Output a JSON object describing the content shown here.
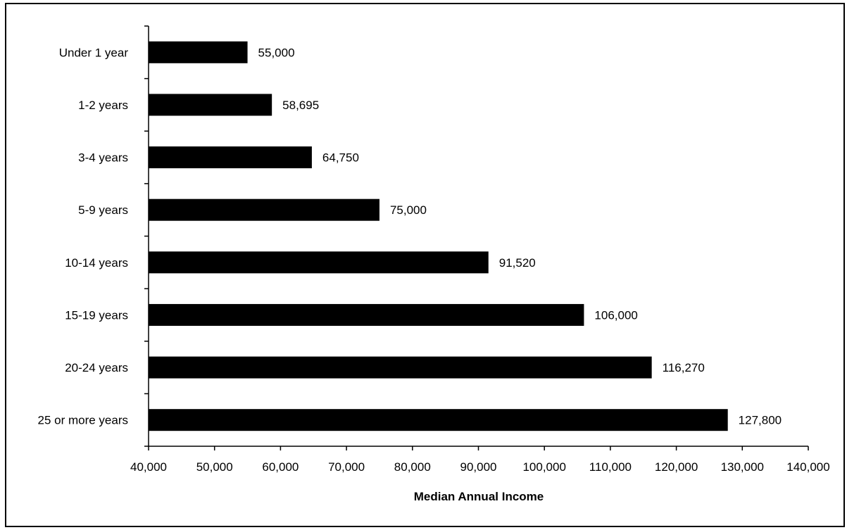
{
  "chart_data": {
    "type": "bar",
    "orientation": "horizontal",
    "title": "",
    "xlabel": "Median Annual Income",
    "ylabel": "",
    "categories": [
      "Under 1 year",
      "1-2 years",
      "3-4 years",
      "5-9 years",
      "10-14 years",
      "15-19 years",
      "20-24 years",
      "25 or more years"
    ],
    "values": [
      55000,
      58695,
      64750,
      75000,
      91520,
      106000,
      116270,
      127800
    ],
    "value_labels": [
      "55,000",
      "58,695",
      "64,750",
      "75,000",
      "91,520",
      "106,000",
      "116,270",
      "127,800"
    ],
    "xlim": [
      40000,
      140000
    ],
    "xticks": [
      40000,
      50000,
      60000,
      70000,
      80000,
      90000,
      100000,
      110000,
      120000,
      130000,
      140000
    ],
    "xtick_labels": [
      "40,000",
      "50,000",
      "60,000",
      "70,000",
      "80,000",
      "90,000",
      "100,000",
      "110,000",
      "120,000",
      "130,000",
      "140,000"
    ],
    "grid": false,
    "legend": "none",
    "bar_color": "#000000"
  }
}
